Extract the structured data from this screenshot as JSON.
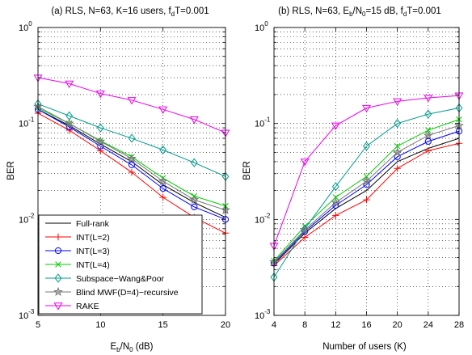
{
  "chart_data": [
    {
      "type": "line",
      "title": "(a) RLS, N=63, K=16 users, f",
      "title_sub": "d",
      "title_tail": "T=0.001",
      "xlabel": "E",
      "xlabel_sub1": "b",
      "xlabel_mid": "/N",
      "xlabel_sub2": "0",
      "xlabel_tail": " (dB)",
      "ylabel": "BER",
      "y_scale": "log",
      "xlim": [
        5,
        20
      ],
      "ylim": [
        0.001,
        1
      ],
      "x_ticks": [
        5,
        10,
        15,
        20
      ],
      "y_tick_labels": [
        {
          "base": "10",
          "exp": "0"
        },
        {
          "base": "10",
          "exp": "-1"
        },
        {
          "base": "10",
          "exp": "-2"
        },
        {
          "base": "10",
          "exp": "-3"
        }
      ],
      "grid": true,
      "legend_placement": "bottom-left",
      "x": [
        5,
        7.5,
        10,
        12.5,
        15,
        17.5,
        20
      ],
      "series": [
        {
          "name": "Full-rank",
          "color": "#000000",
          "marker": "none",
          "values": [
            0.14,
            0.095,
            0.061,
            0.04,
            0.023,
            0.015,
            0.0105
          ]
        },
        {
          "name": "INT(L=2)",
          "color": "#ff0000",
          "marker": "plus",
          "values": [
            0.128,
            0.085,
            0.052,
            0.031,
            0.017,
            0.0105,
            0.0072
          ]
        },
        {
          "name": "INT(L=3)",
          "color": "#0000ff",
          "marker": "circle",
          "values": [
            0.14,
            0.092,
            0.058,
            0.037,
            0.021,
            0.0135,
            0.01
          ]
        },
        {
          "name": "INT(L=4)",
          "color": "#00cc00",
          "marker": "x",
          "values": [
            0.145,
            0.1,
            0.066,
            0.045,
            0.027,
            0.0175,
            0.0138
          ]
        },
        {
          "name": "Subspace−Wang&Poor",
          "color": "#009b8c",
          "marker": "diamond",
          "values": [
            0.16,
            0.12,
            0.09,
            0.07,
            0.053,
            0.039,
            0.028
          ]
        },
        {
          "name": "Blind MWF(D=4)−recursive",
          "color": "#777777",
          "marker": "star",
          "values": [
            0.15,
            0.1,
            0.065,
            0.043,
            0.025,
            0.016,
            0.0125
          ]
        },
        {
          "name": "RAKE",
          "color": "#ee00ee",
          "marker": "triangle-down",
          "values": [
            0.3,
            0.26,
            0.205,
            0.175,
            0.14,
            0.11,
            0.08
          ]
        }
      ]
    },
    {
      "type": "line",
      "title": "(b) RLS, N=63, E",
      "title_sub": "b",
      "title_mid": "/N",
      "title_sub2": "0",
      "title_tail": "=15 dB, f",
      "title_sub3": "d",
      "title_tail2": "T=0.001",
      "xlabel": "Number of users (K)",
      "ylabel": "BER",
      "y_scale": "log",
      "xlim": [
        4,
        28
      ],
      "ylim": [
        0.001,
        1
      ],
      "x_ticks": [
        4,
        8,
        12,
        16,
        20,
        24,
        28
      ],
      "y_tick_labels": [
        {
          "base": "10",
          "exp": "0"
        },
        {
          "base": "10",
          "exp": "-1"
        },
        {
          "base": "10",
          "exp": "-2"
        },
        {
          "base": "10",
          "exp": "-3"
        }
      ],
      "grid": true,
      "x": [
        4,
        8,
        12,
        16,
        20,
        24,
        28
      ],
      "series": [
        {
          "name": "Full-rank",
          "color": "#000000",
          "marker": "none",
          "values": [
            0.0034,
            0.0072,
            0.013,
            0.02,
            0.04,
            0.055,
            0.07
          ]
        },
        {
          "name": "INT(L=2)",
          "color": "#ff0000",
          "marker": "plus",
          "values": [
            0.0033,
            0.0065,
            0.011,
            0.016,
            0.034,
            0.052,
            0.062
          ]
        },
        {
          "name": "INT(L=3)",
          "color": "#0000ff",
          "marker": "circle",
          "values": [
            0.0035,
            0.0075,
            0.014,
            0.023,
            0.045,
            0.065,
            0.083
          ]
        },
        {
          "name": "INT(L=4)",
          "color": "#00cc00",
          "marker": "x",
          "values": [
            0.0037,
            0.0085,
            0.017,
            0.028,
            0.058,
            0.085,
            0.11
          ]
        },
        {
          "name": "Subspace−Wang&Poor",
          "color": "#009b8c",
          "marker": "diamond",
          "values": [
            0.0025,
            0.008,
            0.022,
            0.058,
            0.1,
            0.125,
            0.145
          ]
        },
        {
          "name": "Blind MWF(D=4)−recursive",
          "color": "#777777",
          "marker": "star",
          "values": [
            0.0036,
            0.0078,
            0.015,
            0.025,
            0.05,
            0.075,
            0.095
          ]
        },
        {
          "name": "RAKE",
          "color": "#ee00ee",
          "marker": "triangle-down",
          "values": [
            0.0053,
            0.04,
            0.095,
            0.145,
            0.17,
            0.185,
            0.195
          ]
        }
      ]
    }
  ]
}
